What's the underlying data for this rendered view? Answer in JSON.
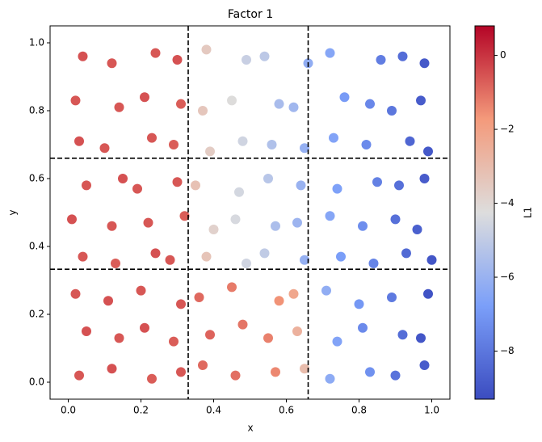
{
  "chart_data": {
    "type": "scatter",
    "title": "Factor 1",
    "x_label": "x",
    "y_label": "y",
    "colorbar_label": "L1",
    "colormap": "coolwarm",
    "xlim": [
      -0.05,
      1.05
    ],
    "ylim": [
      -0.05,
      1.05
    ],
    "clim": [
      -9.3,
      0.8
    ],
    "xticks": [
      {
        "value": 0,
        "label": "0.0"
      },
      0.2,
      0.4,
      0.6,
      0.8,
      {
        "value": 1,
        "label": "1.0"
      }
    ],
    "yticks": [
      {
        "value": 0,
        "label": "0.0"
      },
      0.2,
      0.4,
      0.6,
      0.8,
      {
        "value": 1,
        "label": "1.0"
      }
    ],
    "cticks": [
      {
        "value": -8,
        "label": "−8"
      },
      {
        "value": -6,
        "label": "−6"
      },
      {
        "value": -4,
        "label": "−4"
      },
      {
        "value": -2,
        "label": "−2"
      },
      0
    ],
    "vlines": [
      0.33,
      0.66
    ],
    "hlines": [
      0.333,
      0.66
    ],
    "x": [
      0.03,
      0.12,
      0.23,
      0.31,
      0.37,
      0.46,
      0.57,
      0.65,
      0.72,
      0.83,
      0.9,
      0.98,
      0.05,
      0.14,
      0.21,
      0.29,
      0.39,
      0.48,
      0.55,
      0.63,
      0.74,
      0.81,
      0.92,
      0.97,
      0.02,
      0.11,
      0.2,
      0.31,
      0.36,
      0.45,
      0.58,
      0.62,
      0.71,
      0.8,
      0.89,
      0.99,
      0.04,
      0.13,
      0.24,
      0.28,
      0.38,
      0.49,
      0.54,
      0.65,
      0.75,
      0.84,
      0.93,
      1.0,
      0.01,
      0.12,
      0.22,
      0.32,
      0.4,
      0.46,
      0.57,
      0.63,
      0.72,
      0.81,
      0.9,
      0.96,
      0.05,
      0.15,
      0.19,
      0.3,
      0.35,
      0.47,
      0.55,
      0.64,
      0.74,
      0.85,
      0.91,
      0.98,
      0.03,
      0.1,
      0.23,
      0.29,
      0.39,
      0.48,
      0.56,
      0.65,
      0.73,
      0.82,
      0.94,
      0.99,
      0.02,
      0.14,
      0.21,
      0.31,
      0.37,
      0.45,
      0.58,
      0.62,
      0.76,
      0.83,
      0.89,
      0.97,
      0.04,
      0.12,
      0.24,
      0.3,
      0.38,
      0.49,
      0.54,
      0.66,
      0.72,
      0.86,
      0.92,
      0.98
    ],
    "y": [
      0.02,
      0.04,
      0.01,
      0.03,
      0.05,
      0.02,
      0.03,
      0.04,
      0.01,
      0.03,
      0.02,
      0.05,
      0.15,
      0.13,
      0.16,
      0.12,
      0.14,
      0.17,
      0.13,
      0.15,
      0.12,
      0.16,
      0.14,
      0.13,
      0.26,
      0.24,
      0.27,
      0.23,
      0.25,
      0.28,
      0.24,
      0.26,
      0.27,
      0.23,
      0.25,
      0.26,
      0.37,
      0.35,
      0.38,
      0.36,
      0.37,
      0.35,
      0.38,
      0.36,
      0.37,
      0.35,
      0.38,
      0.36,
      0.48,
      0.46,
      0.47,
      0.49,
      0.45,
      0.48,
      0.46,
      0.47,
      0.49,
      0.46,
      0.48,
      0.45,
      0.58,
      0.6,
      0.57,
      0.59,
      0.58,
      0.56,
      0.6,
      0.58,
      0.57,
      0.59,
      0.58,
      0.6,
      0.71,
      0.69,
      0.72,
      0.7,
      0.68,
      0.71,
      0.7,
      0.69,
      0.72,
      0.7,
      0.71,
      0.68,
      0.83,
      0.81,
      0.84,
      0.82,
      0.8,
      0.83,
      0.82,
      0.81,
      0.84,
      0.82,
      0.8,
      0.83,
      0.96,
      0.94,
      0.97,
      0.95,
      0.98,
      0.95,
      0.96,
      0.94,
      0.97,
      0.95,
      0.96,
      0.94
    ],
    "c": [
      -0.6,
      -0.5,
      -0.7,
      -0.6,
      -0.9,
      -1.0,
      -1.4,
      -3.0,
      -6.3,
      -7.2,
      -8.1,
      -8.8,
      -0.5,
      -0.6,
      -0.5,
      -0.7,
      -0.8,
      -1.1,
      -1.3,
      -2.6,
      -6.6,
      -7.4,
      -8.3,
      -9.0,
      -0.6,
      -0.5,
      -0.6,
      -0.6,
      -0.9,
      -1.2,
      -1.6,
      -2.2,
      -6.2,
      -7.0,
      -7.9,
      -9.1,
      -0.6,
      -0.7,
      -0.5,
      -0.6,
      -3.3,
      -4.6,
      -5.0,
      -6.1,
      -6.8,
      -7.6,
      -8.4,
      -9.0,
      -0.5,
      -0.6,
      -0.6,
      -0.7,
      -3.8,
      -4.4,
      -5.5,
      -5.9,
      -6.5,
      -7.3,
      -8.2,
      -8.7,
      -0.6,
      -0.5,
      -0.6,
      -0.6,
      -3.2,
      -4.5,
      -5.2,
      -6.0,
      -6.7,
      -7.7,
      -8.2,
      -8.8,
      -0.5,
      -0.6,
      -0.6,
      -0.7,
      -3.6,
      -4.6,
      -5.4,
      -6.1,
      -6.6,
      -7.4,
      -8.5,
      -8.9,
      -0.6,
      -0.6,
      -0.5,
      -0.7,
      -3.4,
      -4.2,
      -5.6,
      -5.8,
      -6.9,
      -7.5,
      -8.0,
      -8.8,
      -0.5,
      -0.6,
      -0.6,
      -0.5,
      -3.5,
      -4.8,
      -5.1,
      -6.2,
      -6.5,
      -7.8,
      -8.3,
      -8.9
    ]
  }
}
